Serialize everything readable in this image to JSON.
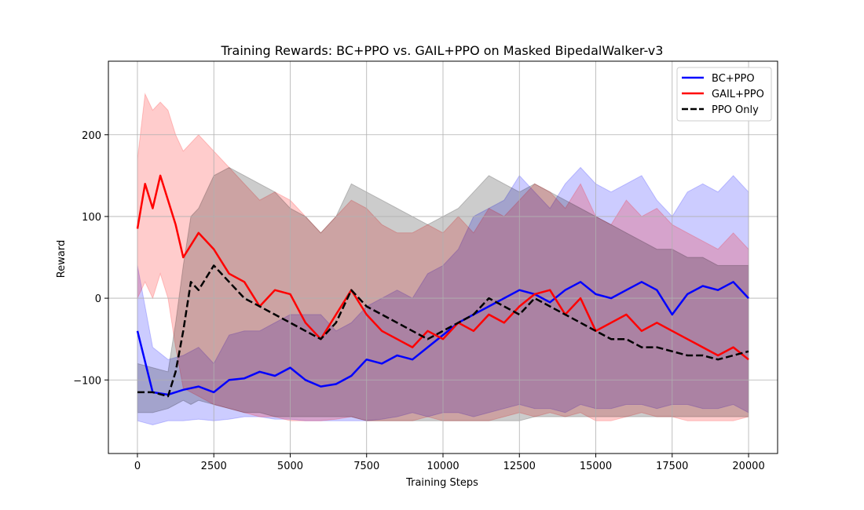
{
  "chart_data": {
    "type": "line",
    "title": "Training Rewards: BC+PPO vs. GAIL+PPO on Masked BipedalWalker-v3",
    "xlabel": "Training Steps",
    "ylabel": "Reward",
    "xlim": [
      -950,
      20950
    ],
    "ylim": [
      -190,
      290
    ],
    "xticks": [
      0,
      2500,
      5000,
      7500,
      10000,
      12500,
      15000,
      17500,
      20000
    ],
    "xtick_labels": [
      "0",
      "2500",
      "5000",
      "7500",
      "10000",
      "12500",
      "15000",
      "17500",
      "20000"
    ],
    "yticks": [
      -100,
      0,
      100,
      200
    ],
    "ytick_labels": [
      "−100",
      "0",
      "100",
      "200"
    ],
    "grid": true,
    "legend_position": "top-right",
    "series": [
      {
        "name": "BC+PPO",
        "color": "#0000ff",
        "dash": "solid",
        "x": [
          0,
          500,
          1000,
          1500,
          2000,
          2500,
          3000,
          3500,
          4000,
          4500,
          5000,
          5500,
          6000,
          6500,
          7000,
          7500,
          8000,
          8500,
          9000,
          9500,
          10000,
          10500,
          11000,
          11500,
          12000,
          12500,
          13000,
          13500,
          14000,
          14500,
          15000,
          15500,
          16000,
          16500,
          17000,
          17500,
          18000,
          18500,
          19000,
          19500,
          20000
        ],
        "y": [
          -40,
          -115,
          -118,
          -112,
          -108,
          -115,
          -100,
          -98,
          -90,
          -95,
          -85,
          -100,
          -108,
          -105,
          -95,
          -75,
          -80,
          -70,
          -75,
          -60,
          -45,
          -30,
          -20,
          -10,
          0,
          10,
          5,
          -5,
          10,
          20,
          5,
          0,
          10,
          20,
          10,
          -20,
          5,
          15,
          10,
          20,
          0
        ],
        "lower": [
          -150,
          -155,
          -150,
          -150,
          -148,
          -150,
          -148,
          -145,
          -145,
          -148,
          -148,
          -150,
          -150,
          -150,
          -150,
          -150,
          -148,
          -145,
          -140,
          -145,
          -140,
          -140,
          -145,
          -140,
          -135,
          -130,
          -135,
          -135,
          -140,
          -130,
          -135,
          -135,
          -130,
          -130,
          -135,
          -130,
          -130,
          -135,
          -135,
          -130,
          -140
        ],
        "upper": [
          40,
          -60,
          -75,
          -70,
          -60,
          -80,
          -45,
          -40,
          -40,
          -30,
          -20,
          -20,
          -20,
          -40,
          -30,
          -10,
          0,
          10,
          0,
          30,
          40,
          60,
          100,
          110,
          120,
          150,
          130,
          110,
          140,
          160,
          140,
          130,
          140,
          150,
          120,
          100,
          130,
          140,
          130,
          150,
          130
        ]
      },
      {
        "name": "GAIL+PPO",
        "color": "#ff0000",
        "dash": "solid",
        "x": [
          0,
          250,
          500,
          750,
          1000,
          1250,
          1500,
          2000,
          2500,
          3000,
          3500,
          4000,
          4500,
          5000,
          5500,
          6000,
          6500,
          7000,
          7500,
          8000,
          8500,
          9000,
          9500,
          10000,
          10500,
          11000,
          11500,
          12000,
          12500,
          13000,
          13500,
          14000,
          14500,
          15000,
          15500,
          16000,
          16500,
          17000,
          17500,
          18000,
          18500,
          19000,
          19500,
          20000
        ],
        "y": [
          85,
          140,
          110,
          150,
          120,
          90,
          50,
          80,
          60,
          30,
          20,
          -10,
          10,
          5,
          -30,
          -50,
          -20,
          10,
          -20,
          -40,
          -50,
          -60,
          -40,
          -50,
          -30,
          -40,
          -20,
          -30,
          -10,
          5,
          10,
          -20,
          0,
          -40,
          -30,
          -20,
          -40,
          -30,
          -40,
          -50,
          -60,
          -70,
          -60,
          -75
        ],
        "lower": [
          0,
          20,
          0,
          30,
          0,
          -60,
          -110,
          -120,
          -130,
          -135,
          -140,
          -145,
          -145,
          -150,
          -150,
          -150,
          -148,
          -145,
          -150,
          -150,
          -150,
          -150,
          -145,
          -150,
          -150,
          -150,
          -150,
          -145,
          -140,
          -145,
          -140,
          -145,
          -140,
          -150,
          -150,
          -145,
          -140,
          -145,
          -145,
          -150,
          -150,
          -150,
          -150,
          -145
        ],
        "upper": [
          170,
          250,
          230,
          240,
          230,
          200,
          180,
          200,
          180,
          160,
          140,
          120,
          130,
          120,
          100,
          80,
          100,
          120,
          110,
          90,
          80,
          80,
          90,
          80,
          100,
          80,
          110,
          100,
          120,
          140,
          130,
          110,
          140,
          100,
          90,
          120,
          100,
          110,
          90,
          80,
          70,
          60,
          80,
          60
        ]
      },
      {
        "name": "PPO Only",
        "color": "#000000",
        "dash": "dashed",
        "x": [
          0,
          500,
          1000,
          1250,
          1500,
          1750,
          2000,
          2500,
          3000,
          3500,
          4000,
          4500,
          5000,
          5500,
          6000,
          6500,
          7000,
          7500,
          8000,
          8500,
          9000,
          9500,
          10000,
          10500,
          11000,
          11500,
          12000,
          12500,
          13000,
          13500,
          14000,
          14500,
          15000,
          15500,
          16000,
          16500,
          17000,
          17500,
          18000,
          18500,
          19000,
          19500,
          20000
        ],
        "y": [
          -115,
          -115,
          -120,
          -90,
          -40,
          20,
          10,
          40,
          20,
          0,
          -10,
          -20,
          -30,
          -40,
          -50,
          -30,
          10,
          -10,
          -20,
          -30,
          -40,
          -50,
          -40,
          -30,
          -20,
          0,
          -10,
          -20,
          0,
          -10,
          -20,
          -30,
          -40,
          -50,
          -50,
          -60,
          -60,
          -65,
          -70,
          -70,
          -75,
          -70,
          -65
        ],
        "lower": [
          -140,
          -140,
          -135,
          -130,
          -125,
          -130,
          -125,
          -130,
          -135,
          -140,
          -140,
          -145,
          -145,
          -145,
          -145,
          -145,
          -145,
          -150,
          -150,
          -150,
          -150,
          -150,
          -150,
          -150,
          -150,
          -150,
          -150,
          -150,
          -145,
          -145,
          -145,
          -145,
          -145,
          -145,
          -145,
          -145,
          -145,
          -145,
          -145,
          -145,
          -145,
          -145,
          -145
        ],
        "upper": [
          -80,
          -85,
          -90,
          -30,
          40,
          100,
          110,
          150,
          160,
          150,
          140,
          130,
          110,
          100,
          80,
          100,
          140,
          130,
          120,
          110,
          100,
          90,
          100,
          110,
          130,
          150,
          140,
          130,
          140,
          130,
          120,
          110,
          100,
          90,
          80,
          70,
          60,
          60,
          50,
          50,
          40,
          40,
          40
        ]
      }
    ]
  }
}
